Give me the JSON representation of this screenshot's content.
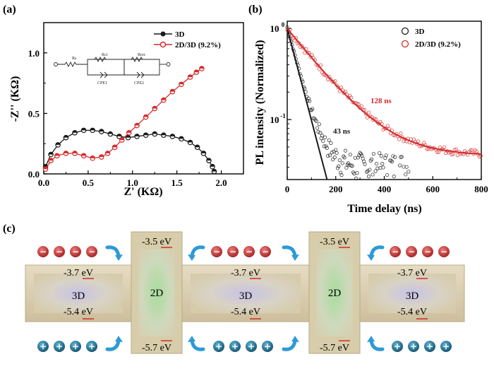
{
  "colors": {
    "series_3d": "#1a1a1a",
    "series_2d3d": "#d42a2a",
    "band_3d": "#dcd3bd",
    "band_2d": "#d8dec3",
    "blue_arrow": "#2e9ad6",
    "electron": "#c92f2f",
    "hole": "#1e6f8f"
  },
  "chart_data": [
    {
      "panel": "(a)",
      "type": "scatter",
      "title": "",
      "xlabel": "Z' (KΩ)",
      "ylabel": "-Z'' (KΩ)",
      "xlim": [
        0,
        2.25
      ],
      "ylim": [
        0,
        1.25
      ],
      "xticks": [
        "0.0",
        "0.5",
        "1.0",
        "1.5",
        "2.0"
      ],
      "yticks": [
        "0.0",
        "0.5",
        "1.0"
      ],
      "legend_position": "top-right",
      "inset": {
        "labels": [
          "Rs",
          "Rct",
          "Rrec",
          "CPE1",
          "CPE2"
        ]
      },
      "series": [
        {
          "name": "3D",
          "marker": "circle-filled-half",
          "points": [
            [
              0.02,
              0.06
            ],
            [
              0.08,
              0.16
            ],
            [
              0.16,
              0.24
            ],
            [
              0.25,
              0.3
            ],
            [
              0.35,
              0.34
            ],
            [
              0.45,
              0.36
            ],
            [
              0.55,
              0.36
            ],
            [
              0.65,
              0.35
            ],
            [
              0.75,
              0.33
            ],
            [
              0.85,
              0.31
            ],
            [
              0.95,
              0.3
            ],
            [
              1.05,
              0.31
            ],
            [
              1.15,
              0.32
            ],
            [
              1.25,
              0.33
            ],
            [
              1.35,
              0.32
            ],
            [
              1.45,
              0.31
            ],
            [
              1.55,
              0.29
            ],
            [
              1.65,
              0.26
            ],
            [
              1.73,
              0.22
            ],
            [
              1.8,
              0.17
            ],
            [
              1.86,
              0.11
            ],
            [
              1.9,
              0.06
            ],
            [
              1.92,
              0.02
            ]
          ]
        },
        {
          "name": "2D/3D (9.2%)",
          "marker": "circle-half-red",
          "points": [
            [
              0.02,
              0.04
            ],
            [
              0.08,
              0.11
            ],
            [
              0.15,
              0.15
            ],
            [
              0.25,
              0.17
            ],
            [
              0.35,
              0.17
            ],
            [
              0.45,
              0.15
            ],
            [
              0.55,
              0.13
            ],
            [
              0.65,
              0.14
            ],
            [
              0.72,
              0.17
            ],
            [
              0.8,
              0.22
            ],
            [
              0.88,
              0.28
            ],
            [
              0.96,
              0.34
            ],
            [
              1.05,
              0.4
            ],
            [
              1.15,
              0.47
            ],
            [
              1.25,
              0.54
            ],
            [
              1.35,
              0.61
            ],
            [
              1.45,
              0.68
            ],
            [
              1.55,
              0.74
            ],
            [
              1.65,
              0.8
            ],
            [
              1.72,
              0.84
            ],
            [
              1.78,
              0.87
            ]
          ]
        }
      ]
    },
    {
      "panel": "(b)",
      "type": "scatter",
      "title": "",
      "xlabel": "Time delay (ns)",
      "ylabel": "PL intensity (Normalized)",
      "xlim": [
        0,
        800
      ],
      "ylim_log": [
        0.022,
        1.2
      ],
      "xticks": [
        "0",
        "200",
        "400",
        "600",
        "800"
      ],
      "yticks": [
        "10^0",
        "10^-1"
      ],
      "legend_position": "top-right",
      "annotations": [
        "43 ns",
        "128 ns"
      ],
      "series": [
        {
          "name": "3D",
          "marker": "open-circle",
          "lifetime_ns": 43,
          "baseline": 0.0
        },
        {
          "name": "2D/3D (9.2%)",
          "marker": "open-circle",
          "lifetime_ns": 128,
          "baseline": 0.04
        }
      ]
    },
    {
      "panel": "(c)",
      "type": "diagram",
      "blocks": [
        {
          "label": "3D",
          "cb": "-3.7 eV",
          "vb": "-5.4 eV"
        },
        {
          "label": "2D",
          "cb": "-3.5 eV",
          "vb": "-5.7 eV"
        },
        {
          "label": "3D",
          "cb": "-3.7 eV",
          "vb": "-5.4 eV"
        },
        {
          "label": "2D",
          "cb": "-3.5 eV",
          "vb": "-5.7 eV"
        },
        {
          "label": "3D",
          "cb": "-3.7 eV",
          "vb": "-5.4 eV"
        }
      ],
      "electron_symbol": "−",
      "hole_symbol": "+"
    }
  ],
  "panels": {
    "a": "(a)",
    "b": "(b)",
    "c": "(c)"
  }
}
